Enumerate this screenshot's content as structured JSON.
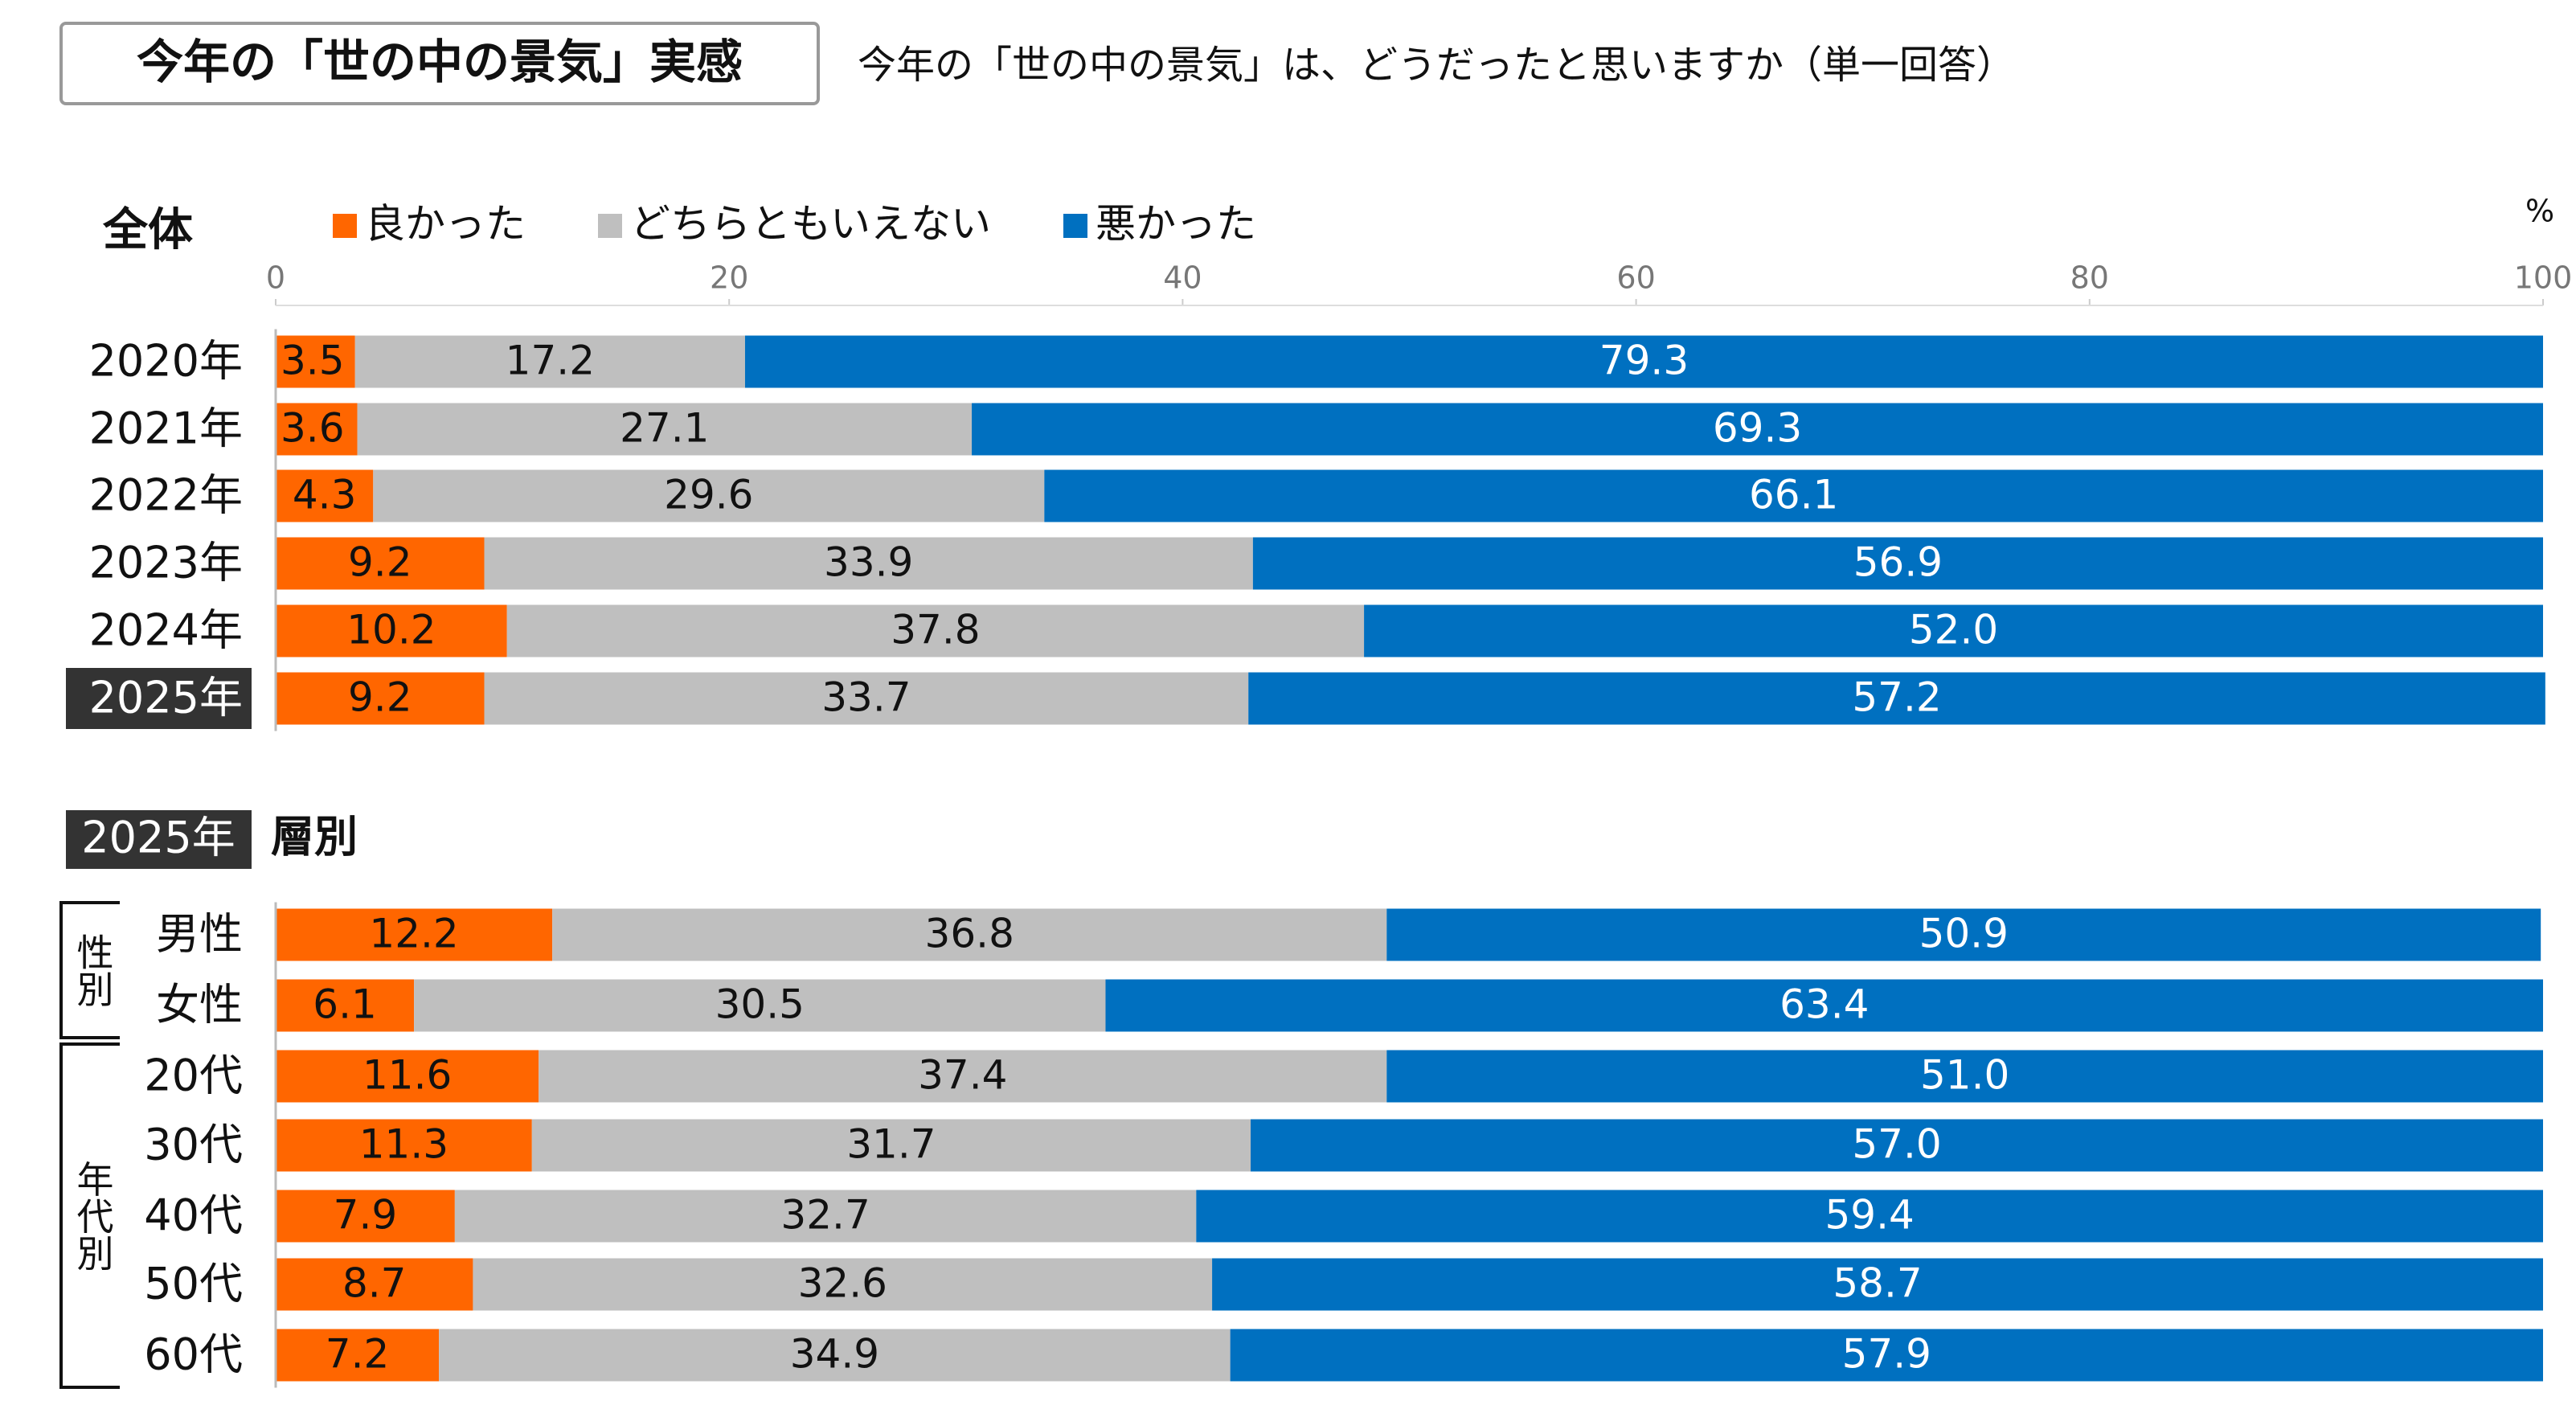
{
  "header": {
    "title": "今年の「世の中の景気」実感",
    "question": "今年の「世の中の景気」は、どうだったと思いますか（単一回答）"
  },
  "chart_data": [
    {
      "type": "stacked-bar",
      "orientation": "horizontal",
      "title": "全体",
      "xlabel": "%",
      "categories": [
        "2020年",
        "2021年",
        "2022年",
        "2023年",
        "2024年",
        "2025年"
      ],
      "series": [
        {
          "name": "良かった",
          "color": "#ff6600",
          "values": [
            3.5,
            3.6,
            4.3,
            9.2,
            10.2,
            9.2
          ]
        },
        {
          "name": "どちらともいえない",
          "color": "#bfbfbf",
          "values": [
            17.2,
            27.1,
            29.6,
            33.9,
            37.8,
            33.7
          ]
        },
        {
          "name": "悪かった",
          "color": "#0070c0",
          "values": [
            79.3,
            69.3,
            66.1,
            56.9,
            52.0,
            57.2
          ],
          "value_labels": [
            "79.3",
            "69.3",
            "66.1",
            "56.9",
            "52.0",
            "57.2"
          ]
        }
      ],
      "xlim": [
        0,
        100
      ],
      "xticks": [
        0,
        20,
        40,
        60,
        80,
        100
      ]
    },
    {
      "type": "stacked-bar",
      "orientation": "horizontal",
      "title": "層別",
      "tag": "2025年",
      "groups": [
        "性別",
        "年代別"
      ],
      "categories": [
        "男性",
        "女性",
        "20代",
        "30代",
        "40代",
        "50代",
        "60代"
      ],
      "series": [
        {
          "color": "#ff6600",
          "values": [
            12.2,
            6.1,
            11.6,
            11.3,
            7.9,
            8.7,
            7.2
          ]
        },
        {
          "color": "#bfbfbf",
          "values": [
            36.8,
            30.5,
            37.4,
            31.7,
            32.7,
            32.6,
            34.9
          ]
        },
        {
          "color": "#0070c0",
          "values": [
            50.9,
            63.4,
            51.0,
            57.0,
            59.4,
            58.7,
            57.9
          ],
          "value_labels": [
            "50.9",
            "63.4",
            "51.0",
            "57.0",
            "59.4",
            "58.7",
            "57.9"
          ]
        }
      ],
      "xlim": [
        0,
        100
      ]
    }
  ]
}
